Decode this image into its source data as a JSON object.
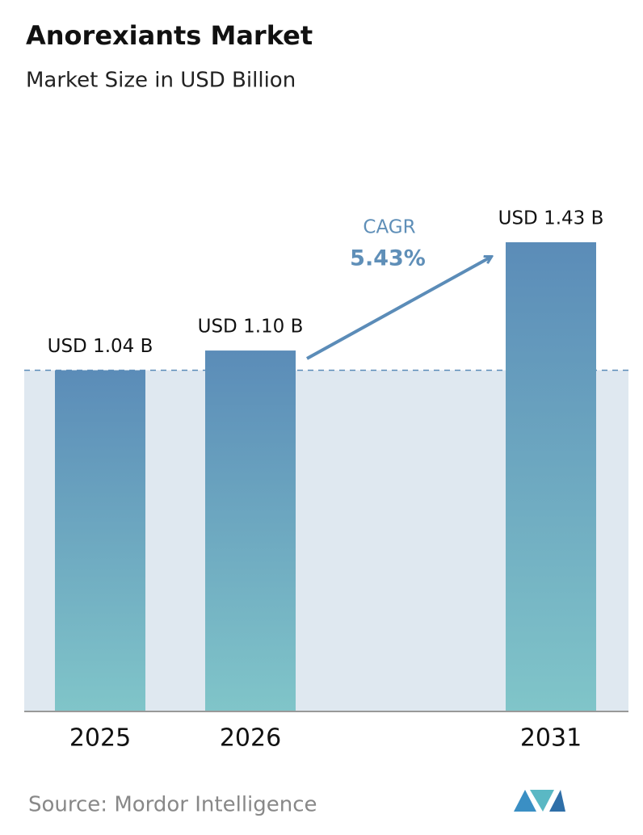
{
  "chart_data": {
    "type": "bar",
    "title": "Anorexiants Market",
    "subtitle": "Market Size in USD Billion",
    "categories": [
      "2025",
      "2026",
      "2031"
    ],
    "values": [
      1.04,
      1.1,
      1.43
    ],
    "value_labels": [
      "USD 1.04 B",
      "USD 1.10 B",
      "USD 1.43 B"
    ],
    "gradient": [
      "#5b8cb8",
      "#80c5c9"
    ],
    "annotation": {
      "label": "CAGR",
      "value": "5.43%"
    },
    "source": "Source:  Mordor Intelligence"
  }
}
